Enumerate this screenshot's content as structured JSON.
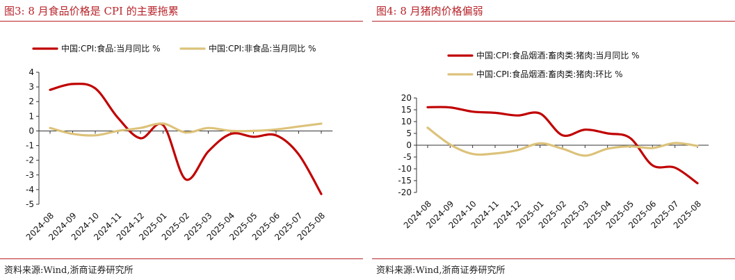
{
  "colors": {
    "accent": "#b8242a",
    "series_red": "#c00000",
    "series_gold": "#dcc27a"
  },
  "left": {
    "title": "图3:   8 月食品价格是 CPI 的主要拖累",
    "source": "资料来源:Wind,浙商证券研究所",
    "chart_data": {
      "type": "line",
      "categories": [
        "2024-08",
        "2024-09",
        "2024-10",
        "2024-11",
        "2024-12",
        "2025-01",
        "2025-02",
        "2025-03",
        "2025-04",
        "2025-05",
        "2025-06",
        "2025-07",
        "2025-08"
      ],
      "ylim": [
        -5,
        4
      ],
      "yticks": [
        "4",
        "3",
        "2",
        "1",
        "0",
        "-1",
        "-2",
        "-3",
        "-4",
        "-5"
      ],
      "legend_position": "top",
      "series": [
        {
          "name": "中国:CPI:食品:当月同比  %",
          "color": "#c00000",
          "values": [
            2.8,
            3.2,
            2.9,
            0.9,
            -0.5,
            0.4,
            -3.3,
            -1.4,
            -0.2,
            -0.4,
            -0.3,
            -1.6,
            -4.3
          ]
        },
        {
          "name": "中国:CPI:非食品:当月同比  %",
          "color": "#dcc27a",
          "values": [
            0.2,
            -0.2,
            -0.3,
            0.0,
            0.2,
            0.5,
            -0.1,
            0.2,
            0.0,
            0.0,
            0.1,
            0.3,
            0.5
          ]
        }
      ]
    }
  },
  "right": {
    "title": "图4:   8 月猪肉价格偏弱",
    "source": "资料来源:Wind,浙商证券研究所",
    "chart_data": {
      "type": "line",
      "categories": [
        "2024-08",
        "2024-09",
        "2024-10",
        "2024-11",
        "2024-12",
        "2025-01",
        "2025-02",
        "2025-03",
        "2025-04",
        "2025-05",
        "2025-06",
        "2025-07",
        "2025-08"
      ],
      "ylim": [
        -20,
        20
      ],
      "yticks": [
        "20",
        "15",
        "10",
        "5",
        "0",
        "-5",
        "-10",
        "-15",
        "-20"
      ],
      "legend_position": "top",
      "series": [
        {
          "name": "中国:CPI:食品烟酒:畜肉类:猪肉:当月同比  %",
          "color": "#c00000",
          "values": [
            16.1,
            16.0,
            14.2,
            13.7,
            12.6,
            13.4,
            4.2,
            6.6,
            5.0,
            3.1,
            -8.5,
            -9.5,
            -16.1
          ]
        },
        {
          "name": "中国:CPI:食品烟酒:畜肉类:猪肉:环比  %",
          "color": "#dcc27a",
          "values": [
            7.4,
            0.3,
            -3.7,
            -3.5,
            -2.1,
            0.8,
            -1.5,
            -4.4,
            -1.5,
            -0.5,
            -1.2,
            0.9,
            -0.3
          ]
        }
      ]
    }
  }
}
